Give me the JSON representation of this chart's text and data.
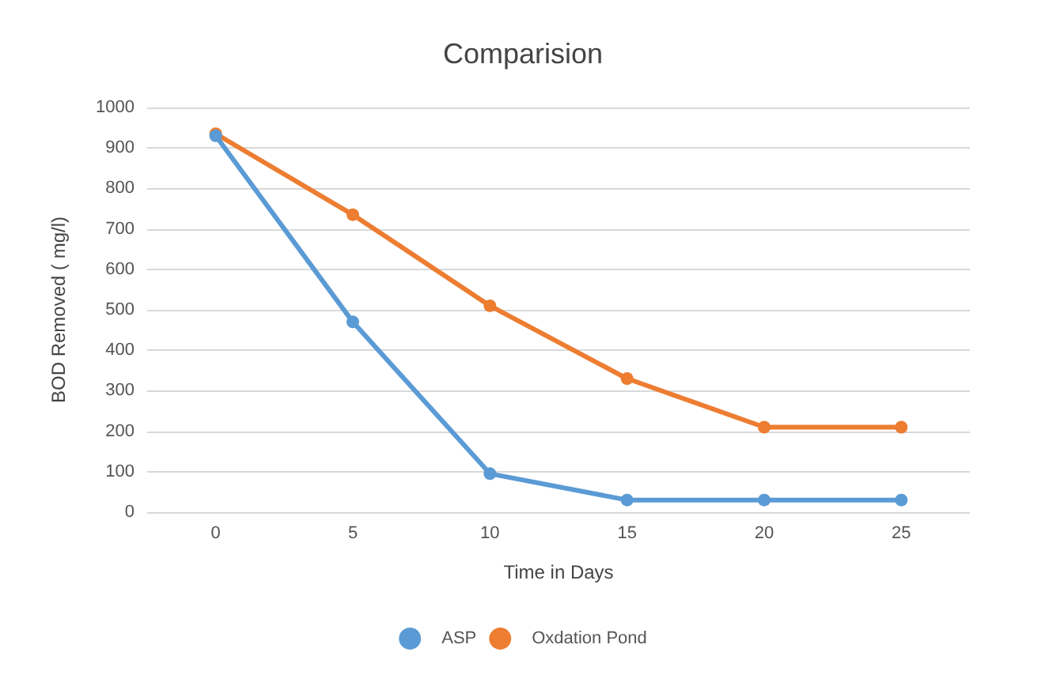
{
  "chart_data": {
    "type": "line",
    "title": "Comparision",
    "xlabel": "Time in Days",
    "ylabel": "BOD Removed ( mg/l)",
    "categories": [
      "0",
      "5",
      "10",
      "15",
      "20",
      "25"
    ],
    "series": [
      {
        "name": "ASP",
        "color": "#5b9bd5",
        "values": [
          930,
          470,
          95,
          30,
          30,
          30
        ]
      },
      {
        "name": "Oxdation Pond",
        "color": "#ed7d31",
        "values": [
          935,
          735,
          510,
          330,
          210,
          210
        ]
      }
    ],
    "ylim": [
      0,
      1000
    ],
    "yticks": [
      0,
      100,
      200,
      300,
      400,
      500,
      600,
      700,
      800,
      900,
      1000
    ],
    "grid": "y",
    "legend": "bottom",
    "marker": "circle",
    "line_style": "solid"
  }
}
